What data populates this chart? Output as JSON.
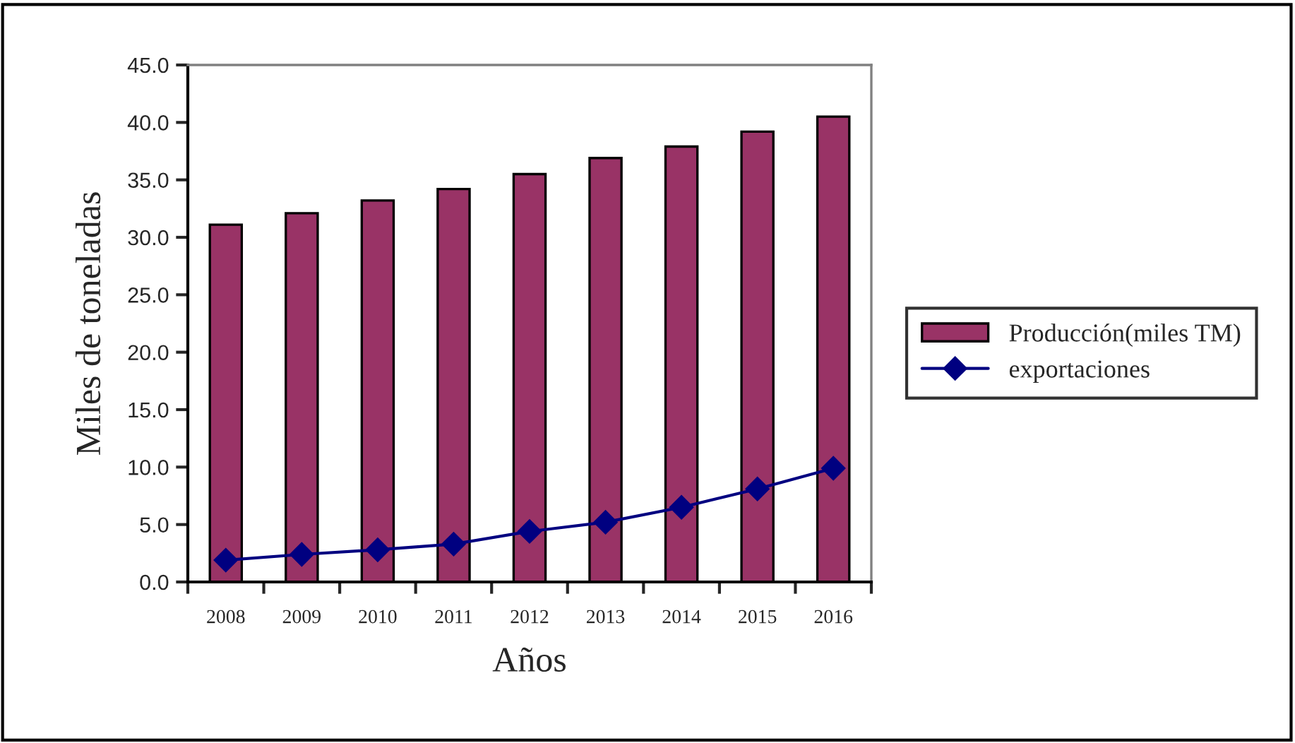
{
  "chart_data": {
    "type": "bar",
    "xlabel": "Años",
    "ylabel": "Miles de toneladas",
    "categories": [
      "2008",
      "2009",
      "2010",
      "2011",
      "2012",
      "2013",
      "2014",
      "2015",
      "2016"
    ],
    "series": [
      {
        "name": "Producción(miles TM)",
        "color": "#993366",
        "values": [
          31.1,
          32.1,
          33.2,
          34.2,
          35.5,
          36.9,
          37.9,
          39.2,
          40.5
        ]
      },
      {
        "name": "exportaciones",
        "type": "line",
        "color": "#000080",
        "marker": "diamond",
        "values": [
          1.9,
          2.4,
          2.8,
          3.3,
          4.4,
          5.2,
          6.5,
          8.1,
          9.9
        ]
      }
    ],
    "ylim": [
      0,
      45
    ],
    "yticks": [
      {
        "value": 0,
        "label": "0.0"
      },
      {
        "value": 5,
        "label": "5.0"
      },
      {
        "value": 10,
        "label": "10.0"
      },
      {
        "value": 15,
        "label": "15.0"
      },
      {
        "value": 20,
        "label": "20.0"
      },
      {
        "value": 25,
        "label": "25.0"
      },
      {
        "value": 30,
        "label": "30.0"
      },
      {
        "value": 35,
        "label": "35.0"
      },
      {
        "value": 40,
        "label": "40.0"
      },
      {
        "value": 45,
        "label": "45.0"
      }
    ],
    "grid": false,
    "legend": "right"
  }
}
